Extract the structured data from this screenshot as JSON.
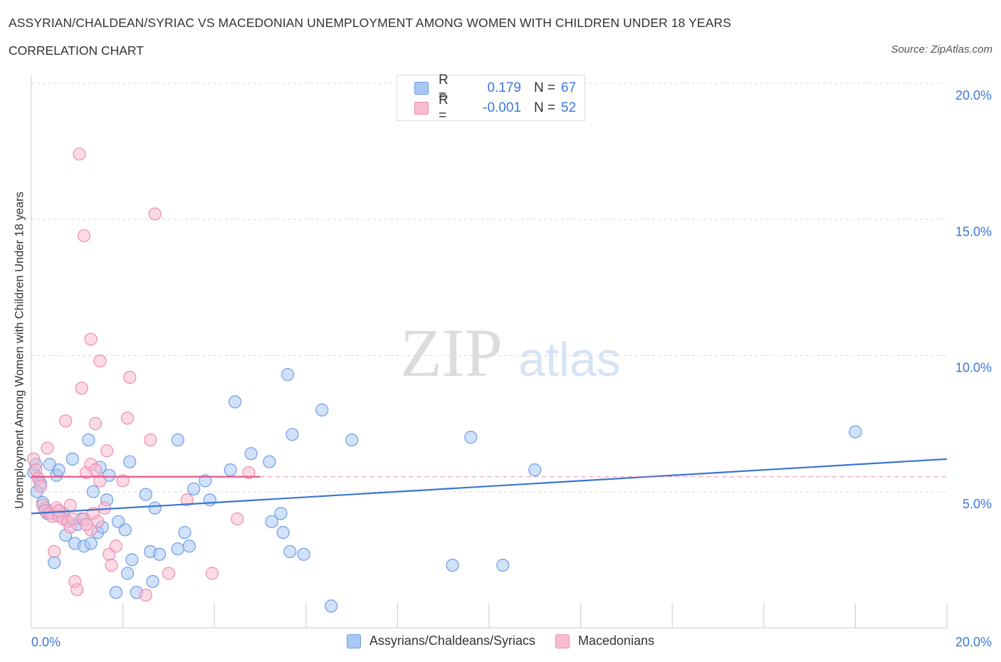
{
  "title": "ASSYRIAN/CHALDEAN/SYRIAC VS MACEDONIAN UNEMPLOYMENT AMONG WOMEN WITH CHILDREN UNDER 18 YEARS",
  "subtitle": "CORRELATION CHART",
  "source": "Source: ZipAtlas.com",
  "watermark": {
    "zip": "ZIP",
    "atlas": "atlas"
  },
  "legend": {
    "r_label": "R =",
    "n_label": "N =",
    "rows": [
      {
        "series": "Assyrians/Chaldeans/Syriacs",
        "r": "0.179",
        "n": "67",
        "fill": "#aac8f4",
        "stroke": "#6d9ee6"
      },
      {
        "series": "Macedonians",
        "r": "-0.001",
        "n": "52",
        "fill": "#f8bcd0",
        "stroke": "#ec8db0"
      }
    ]
  },
  "colors": {
    "blue_line": "#3a76d0",
    "pink_line": "#e8578a",
    "grid": "#d8d8d8",
    "axis_label": "#3b78d8"
  },
  "chart_data": {
    "type": "scatter",
    "title": "ASSYRIAN/CHALDEAN/SYRIAC VS MACEDONIAN UNEMPLOYMENT AMONG WOMEN WITH CHILDREN UNDER 18 YEARS",
    "xlabel": "",
    "ylabel": "Unemployment Among Women with Children Under 18 years",
    "xlim": [
      0,
      20
    ],
    "ylim": [
      0,
      20
    ],
    "x_tick_labels": [
      "0.0%",
      "20.0%"
    ],
    "y_tick_labels": [
      "5.0%",
      "10.0%",
      "15.0%",
      "20.0%"
    ],
    "y_ticks": [
      5,
      10,
      15,
      20
    ],
    "grid": true,
    "legend_position": "top-center",
    "series": [
      {
        "name": "Assyrians/Chaldeans/Syriacs",
        "color": "#aac8f4",
        "trend": {
          "x": [
            0,
            20
          ],
          "y": [
            4.2,
            6.2
          ]
        },
        "points": [
          [
            0.05,
            5.7
          ],
          [
            0.1,
            6.0
          ],
          [
            0.15,
            5.5
          ],
          [
            0.2,
            5.3
          ],
          [
            0.25,
            4.6
          ],
          [
            0.3,
            4.4
          ],
          [
            0.35,
            4.2
          ],
          [
            0.4,
            6.0
          ],
          [
            0.45,
            4.2
          ],
          [
            0.5,
            2.4
          ],
          [
            0.55,
            5.6
          ],
          [
            0.6,
            5.8
          ],
          [
            0.7,
            4.2
          ],
          [
            0.75,
            3.4
          ],
          [
            0.8,
            3.9
          ],
          [
            0.9,
            6.2
          ],
          [
            0.95,
            3.1
          ],
          [
            1.0,
            3.8
          ],
          [
            1.1,
            4.0
          ],
          [
            1.15,
            3.0
          ],
          [
            1.25,
            6.9
          ],
          [
            1.3,
            3.1
          ],
          [
            1.35,
            5.0
          ],
          [
            1.45,
            3.5
          ],
          [
            1.5,
            5.9
          ],
          [
            1.55,
            3.7
          ],
          [
            1.65,
            4.7
          ],
          [
            1.7,
            5.6
          ],
          [
            1.85,
            1.3
          ],
          [
            1.9,
            3.9
          ],
          [
            2.05,
            3.6
          ],
          [
            2.1,
            2.0
          ],
          [
            2.15,
            6.1
          ],
          [
            2.2,
            2.5
          ],
          [
            2.3,
            1.3
          ],
          [
            2.5,
            4.9
          ],
          [
            2.6,
            2.8
          ],
          [
            2.65,
            1.7
          ],
          [
            2.7,
            4.4
          ],
          [
            2.8,
            2.7
          ],
          [
            3.2,
            6.9
          ],
          [
            3.35,
            3.5
          ],
          [
            3.45,
            3.0
          ],
          [
            3.2,
            2.9
          ],
          [
            3.55,
            5.1
          ],
          [
            3.8,
            5.4
          ],
          [
            3.9,
            4.7
          ],
          [
            4.35,
            5.8
          ],
          [
            4.45,
            8.3
          ],
          [
            4.8,
            6.4
          ],
          [
            5.2,
            6.1
          ],
          [
            5.25,
            3.9
          ],
          [
            5.45,
            4.2
          ],
          [
            5.5,
            3.5
          ],
          [
            5.6,
            9.3
          ],
          [
            5.65,
            2.8
          ],
          [
            5.7,
            7.1
          ],
          [
            5.95,
            2.7
          ],
          [
            6.35,
            8.0
          ],
          [
            6.55,
            0.8
          ],
          [
            7.0,
            6.9
          ],
          [
            9.2,
            2.3
          ],
          [
            9.6,
            7.0
          ],
          [
            10.3,
            2.3
          ],
          [
            11.0,
            5.8
          ],
          [
            18.0,
            7.2
          ],
          [
            0.12,
            5.0
          ]
        ]
      },
      {
        "name": "Macedonians",
        "color": "#f8bcd0",
        "trend": {
          "x": [
            0,
            5
          ],
          "y": [
            5.55,
            5.55
          ]
        },
        "points": [
          [
            0.05,
            6.2
          ],
          [
            0.1,
            5.8
          ],
          [
            0.15,
            5.5
          ],
          [
            0.2,
            5.2
          ],
          [
            0.25,
            4.5
          ],
          [
            0.3,
            4.3
          ],
          [
            0.35,
            6.6
          ],
          [
            0.4,
            4.2
          ],
          [
            0.45,
            4.1
          ],
          [
            0.5,
            2.8
          ],
          [
            0.55,
            4.4
          ],
          [
            0.6,
            4.1
          ],
          [
            0.7,
            4.0
          ],
          [
            0.75,
            7.6
          ],
          [
            0.8,
            3.9
          ],
          [
            0.85,
            3.7
          ],
          [
            0.9,
            4.0
          ],
          [
            0.95,
            1.7
          ],
          [
            1.0,
            1.4
          ],
          [
            1.05,
            17.4
          ],
          [
            1.1,
            8.8
          ],
          [
            1.2,
            5.7
          ],
          [
            1.3,
            3.6
          ],
          [
            1.3,
            10.6
          ],
          [
            1.35,
            4.2
          ],
          [
            1.45,
            3.9
          ],
          [
            1.5,
            9.8
          ],
          [
            1.5,
            5.4
          ],
          [
            1.6,
            4.4
          ],
          [
            1.65,
            6.5
          ],
          [
            1.7,
            2.7
          ],
          [
            1.75,
            2.3
          ],
          [
            1.85,
            3.0
          ],
          [
            2.0,
            5.4
          ],
          [
            2.1,
            7.7
          ],
          [
            2.15,
            9.2
          ],
          [
            2.5,
            1.2
          ],
          [
            2.6,
            6.9
          ],
          [
            2.7,
            15.2
          ],
          [
            1.15,
            14.4
          ],
          [
            3.0,
            2.0
          ],
          [
            3.4,
            4.7
          ],
          [
            3.95,
            2.0
          ],
          [
            4.5,
            4.0
          ],
          [
            4.75,
            5.7
          ],
          [
            1.3,
            6.0
          ],
          [
            1.4,
            5.8
          ],
          [
            1.4,
            7.5
          ],
          [
            0.6,
            4.3
          ],
          [
            0.85,
            4.5
          ],
          [
            1.15,
            4.0
          ],
          [
            1.2,
            3.8
          ]
        ]
      }
    ]
  }
}
